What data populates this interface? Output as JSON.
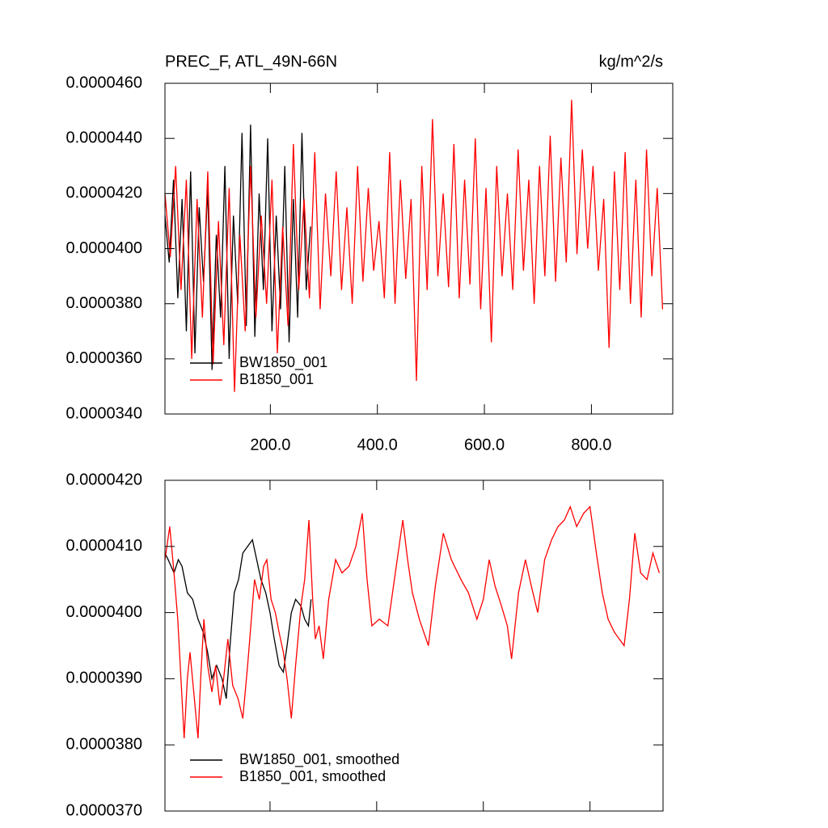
{
  "chart_data": [
    {
      "type": "line",
      "title": "PREC_F, ATL_49N-66N",
      "units": "kg/m^2/s",
      "xlim": [
        3,
        952
      ],
      "ylim": [
        3.4e-05,
        4.6e-05
      ],
      "xticks": [
        {
          "value": 200,
          "label": "200.0"
        },
        {
          "value": 400,
          "label": "400.0"
        },
        {
          "value": 600,
          "label": "600.0"
        },
        {
          "value": 800,
          "label": "800.0"
        }
      ],
      "yticks": [
        {
          "value": 3.4e-05,
          "label": "0.0000340"
        },
        {
          "value": 3.6e-05,
          "label": "0.0000360"
        },
        {
          "value": 3.8e-05,
          "label": "0.0000380"
        },
        {
          "value": 4e-05,
          "label": "0.0000400"
        },
        {
          "value": 4.2e-05,
          "label": "0.0000420"
        },
        {
          "value": 4.4e-05,
          "label": "0.0000440"
        },
        {
          "value": 4.6e-05,
          "label": "0.0000460"
        }
      ],
      "xtick_labels": true,
      "legend": "lower left",
      "series": [
        {
          "name": "BW1850_001",
          "color": "#000000",
          "x": [
            3,
            11,
            19,
            27,
            35,
            43,
            51,
            59,
            67,
            75,
            83,
            91,
            99,
            107,
            115,
            123,
            131,
            139,
            147,
            155,
            163,
            171,
            179,
            187,
            195,
            203,
            211,
            219,
            227,
            235,
            243,
            251,
            259,
            267,
            275
          ],
          "values": [
            4.12e-05,
            3.95e-05,
            4.25e-05,
            3.82e-05,
            4.18e-05,
            3.7e-05,
            4.28e-05,
            3.62e-05,
            4.15e-05,
            3.88e-05,
            4.22e-05,
            3.56e-05,
            4.05e-05,
            3.75e-05,
            4.3e-05,
            3.6e-05,
            4.12e-05,
            3.8e-05,
            4.42e-05,
            3.72e-05,
            4.45e-05,
            3.68e-05,
            4.2e-05,
            3.85e-05,
            4.4e-05,
            3.7e-05,
            4.12e-05,
            3.78e-05,
            4.3e-05,
            3.66e-05,
            4.18e-05,
            3.75e-05,
            4.42e-05,
            3.85e-05,
            4.08e-05
          ]
        },
        {
          "name": "B1850_001",
          "color": "#ff0000",
          "x": [
            3,
            13,
            23,
            33,
            43,
            53,
            63,
            73,
            83,
            93,
            103,
            113,
            123,
            133,
            143,
            153,
            163,
            173,
            183,
            193,
            203,
            213,
            223,
            233,
            243,
            253,
            263,
            273,
            283,
            293,
            303,
            313,
            323,
            333,
            343,
            353,
            363,
            373,
            383,
            393,
            403,
            413,
            423,
            433,
            443,
            453,
            463,
            473,
            483,
            493,
            503,
            513,
            523,
            533,
            543,
            553,
            563,
            573,
            583,
            593,
            603,
            613,
            623,
            633,
            643,
            653,
            663,
            673,
            683,
            693,
            703,
            713,
            723,
            733,
            743,
            753,
            763,
            773,
            783,
            793,
            803,
            813,
            823,
            833,
            843,
            853,
            863,
            873,
            883,
            893,
            903,
            913,
            923,
            933
          ],
          "values": [
            4.2e-05,
            3.97e-05,
            4.3e-05,
            3.85e-05,
            4.25e-05,
            3.6e-05,
            4.18e-05,
            3.75e-05,
            4.28e-05,
            3.58e-05,
            4.1e-05,
            3.65e-05,
            4.22e-05,
            3.48e-05,
            4.05e-05,
            3.7e-05,
            4.3e-05,
            3.75e-05,
            4.12e-05,
            3.8e-05,
            4.25e-05,
            3.62e-05,
            4.08e-05,
            3.72e-05,
            4.38e-05,
            3.85e-05,
            4.18e-05,
            3.82e-05,
            4.35e-05,
            3.78e-05,
            4.2e-05,
            3.9e-05,
            4.28e-05,
            3.85e-05,
            4.15e-05,
            3.8e-05,
            4.3e-05,
            3.88e-05,
            4.22e-05,
            3.92e-05,
            4.1e-05,
            3.82e-05,
            4.35e-05,
            3.8e-05,
            4.25e-05,
            3.89e-05,
            4.18e-05,
            3.52e-05,
            4.3e-05,
            3.85e-05,
            4.47e-05,
            3.9e-05,
            4.2e-05,
            3.86e-05,
            4.38e-05,
            3.82e-05,
            4.25e-05,
            3.87e-05,
            4.4e-05,
            3.78e-05,
            4.22e-05,
            3.66e-05,
            4.3e-05,
            3.9e-05,
            4.2e-05,
            3.85e-05,
            4.36e-05,
            3.92e-05,
            4.25e-05,
            3.8e-05,
            4.3e-05,
            3.9e-05,
            4.41e-05,
            3.88e-05,
            4.33e-05,
            3.95e-05,
            4.54e-05,
            3.98e-05,
            4.36e-05,
            4e-05,
            4.3e-05,
            3.92e-05,
            4.18e-05,
            3.64e-05,
            4.28e-05,
            3.85e-05,
            4.35e-05,
            3.8e-05,
            4.25e-05,
            3.75e-05,
            4.36e-05,
            3.9e-05,
            4.22e-05,
            3.78e-05
          ]
        }
      ]
    },
    {
      "type": "line",
      "xlim": [
        3,
        937
      ],
      "ylim": [
        3.7e-05,
        4.2e-05
      ],
      "xticks": [
        200,
        400,
        600,
        800
      ],
      "yticks": [
        {
          "value": 3.7e-05,
          "label": "0.0000370"
        },
        {
          "value": 3.8e-05,
          "label": "0.0000380"
        },
        {
          "value": 3.9e-05,
          "label": "0.0000390"
        },
        {
          "value": 4e-05,
          "label": "0.0000400"
        },
        {
          "value": 4.1e-05,
          "label": "0.0000410"
        },
        {
          "value": 4.2e-05,
          "label": "0.0000420"
        }
      ],
      "xtick_labels": false,
      "legend": "lower left",
      "series": [
        {
          "name": "BW1850_001, smoothed",
          "color": "#000000",
          "x": [
            3,
            9,
            20,
            28,
            35,
            45,
            55,
            65,
            75,
            83,
            91,
            100,
            110,
            118,
            126,
            133,
            141,
            149,
            158,
            167,
            175,
            183,
            192,
            200,
            208,
            217,
            225,
            232,
            240,
            248,
            258,
            265,
            272,
            277
          ],
          "values": [
            4.09e-05,
            4.08e-05,
            4.06e-05,
            4.08e-05,
            4.07e-05,
            4.03e-05,
            4.02e-05,
            3.99e-05,
            3.97e-05,
            3.94e-05,
            3.9e-05,
            3.92e-05,
            3.9e-05,
            3.87e-05,
            3.96e-05,
            4.03e-05,
            4.05e-05,
            4.09e-05,
            4.1e-05,
            4.11e-05,
            4.08e-05,
            4.05e-05,
            4.03e-05,
            4e-05,
            3.96e-05,
            3.92e-05,
            3.91e-05,
            3.95e-05,
            4e-05,
            4.02e-05,
            4.01e-05,
            3.99e-05,
            3.98e-05,
            4.02e-05
          ]
        },
        {
          "name": "B1850_001, smoothed",
          "color": "#ff0000",
          "x": [
            3,
            12,
            20,
            27,
            33,
            39,
            45,
            50,
            57,
            65,
            70,
            76,
            83,
            91,
            98,
            106,
            113,
            121,
            130,
            140,
            149,
            158,
            165,
            171,
            180,
            188,
            194,
            202,
            210,
            217,
            225,
            232,
            240,
            248,
            258,
            265,
            273,
            280,
            285,
            292,
            300,
            310,
            323,
            335,
            348,
            361,
            373,
            382,
            391,
            405,
            421,
            435,
            449,
            458,
            467,
            480,
            497,
            510,
            525,
            540,
            558,
            572,
            588,
            600,
            611,
            622,
            634,
            645,
            653,
            666,
            679,
            690,
            702,
            715,
            728,
            740,
            752,
            763,
            775,
            788,
            800,
            812,
            823,
            834,
            846,
            855,
            864,
            874,
            884,
            895,
            907,
            918,
            930
          ],
          "values": [
            4.08e-05,
            4.13e-05,
            4.06e-05,
            3.99e-05,
            3.9e-05,
            3.81e-05,
            3.9e-05,
            3.94e-05,
            3.88e-05,
            3.81e-05,
            3.9e-05,
            3.99e-05,
            3.92e-05,
            3.88e-05,
            3.92e-05,
            3.86e-05,
            3.9e-05,
            3.96e-05,
            3.89e-05,
            3.87e-05,
            3.84e-05,
            3.92e-05,
            3.99e-05,
            4.05e-05,
            4.02e-05,
            4.07e-05,
            4.08e-05,
            4.02e-05,
            4e-05,
            3.97e-05,
            3.94e-05,
            3.9e-05,
            3.84e-05,
            3.92e-05,
            4.01e-05,
            4.05e-05,
            4.14e-05,
            4.02e-05,
            3.96e-05,
            3.98e-05,
            3.93e-05,
            4.02e-05,
            4.08e-05,
            4.06e-05,
            4.07e-05,
            4.1e-05,
            4.15e-05,
            4.05e-05,
            3.98e-05,
            3.99e-05,
            3.98e-05,
            4.06e-05,
            4.14e-05,
            4.08e-05,
            4.03e-05,
            3.99e-05,
            3.95e-05,
            4.04e-05,
            4.12e-05,
            4.08e-05,
            4.05e-05,
            4.03e-05,
            3.99e-05,
            4.02e-05,
            4.08e-05,
            4.04e-05,
            4.01e-05,
            3.98e-05,
            3.93e-05,
            4.03e-05,
            4.08e-05,
            4.04e-05,
            4e-05,
            4.08e-05,
            4.11e-05,
            4.13e-05,
            4.14e-05,
            4.16e-05,
            4.13e-05,
            4.15e-05,
            4.16e-05,
            4.09e-05,
            4.03e-05,
            3.99e-05,
            3.97e-05,
            3.96e-05,
            3.95e-05,
            4.02e-05,
            4.12e-05,
            4.06e-05,
            4.05e-05,
            4.09e-05,
            4.06e-05
          ]
        }
      ]
    }
  ]
}
